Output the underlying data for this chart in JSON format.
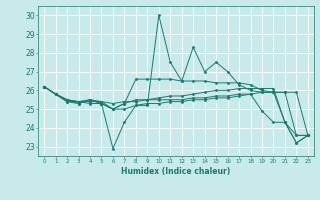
{
  "xlabel": "Humidex (Indice chaleur)",
  "background_color": "#c8eaea",
  "grid_color": "#ffffff",
  "line_color": "#1a7a6e",
  "xlim": [
    -0.5,
    23.5
  ],
  "ylim": [
    22.5,
    30.5
  ],
  "yticks": [
    23,
    24,
    25,
    26,
    27,
    28,
    29,
    30
  ],
  "xticks": [
    0,
    1,
    2,
    3,
    4,
    5,
    6,
    7,
    8,
    9,
    10,
    11,
    12,
    13,
    14,
    15,
    16,
    17,
    18,
    19,
    20,
    21,
    22,
    23
  ],
  "series": [
    [
      26.2,
      25.8,
      25.4,
      25.3,
      25.5,
      25.3,
      22.9,
      24.3,
      25.2,
      25.2,
      30.0,
      27.5,
      26.5,
      28.3,
      27.0,
      27.5,
      27.0,
      26.3,
      26.0,
      25.9,
      25.9,
      24.3,
      23.2,
      23.6
    ],
    [
      26.2,
      25.8,
      25.4,
      25.4,
      25.3,
      25.3,
      25.0,
      25.0,
      25.2,
      25.3,
      25.3,
      25.4,
      25.4,
      25.5,
      25.5,
      25.6,
      25.6,
      25.7,
      25.8,
      25.9,
      25.9,
      25.9,
      25.9,
      23.6
    ],
    [
      26.2,
      25.8,
      25.5,
      25.4,
      25.4,
      25.4,
      25.3,
      25.4,
      25.4,
      25.5,
      25.6,
      25.7,
      25.7,
      25.8,
      25.9,
      26.0,
      26.0,
      26.1,
      26.1,
      26.1,
      26.1,
      24.3,
      23.6,
      23.6
    ],
    [
      26.2,
      25.8,
      25.5,
      25.4,
      25.5,
      25.4,
      25.0,
      25.3,
      26.6,
      26.6,
      26.6,
      26.6,
      26.5,
      26.5,
      26.5,
      26.4,
      26.4,
      26.4,
      26.3,
      26.0,
      25.9,
      25.9,
      23.6,
      23.6
    ],
    [
      26.2,
      25.8,
      25.5,
      25.3,
      25.5,
      25.3,
      25.0,
      25.3,
      25.5,
      25.5,
      25.5,
      25.5,
      25.5,
      25.6,
      25.6,
      25.7,
      25.7,
      25.8,
      25.8,
      24.9,
      24.3,
      24.3,
      23.2,
      23.6
    ]
  ]
}
